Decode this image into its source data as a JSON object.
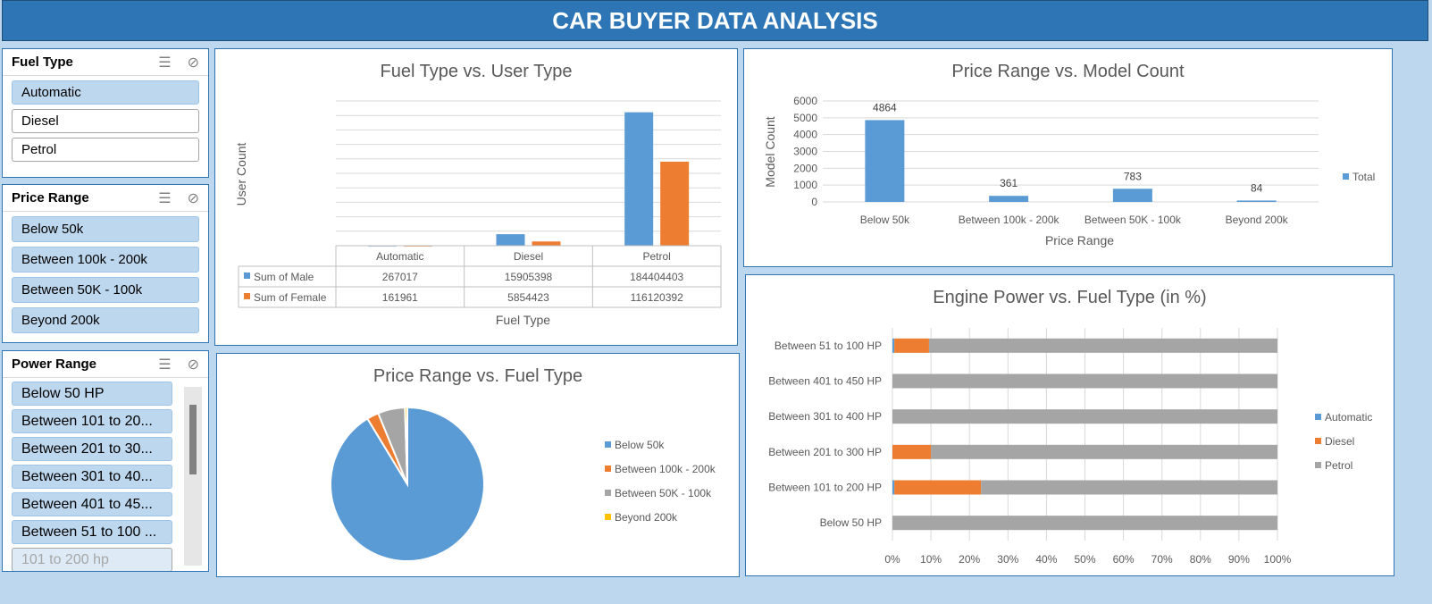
{
  "title": "CAR BUYER DATA ANALYSIS",
  "slicers": [
    {
      "title": "Fuel Type",
      "items": [
        {
          "label": "Automatic",
          "selected": true
        },
        {
          "label": "Diesel",
          "selected": false
        },
        {
          "label": "Petrol",
          "selected": false
        }
      ]
    },
    {
      "title": "Price Range",
      "items": [
        {
          "label": "Below 50k",
          "selected": true
        },
        {
          "label": "Between 100k - 200k",
          "selected": true
        },
        {
          "label": "Between 50K - 100k",
          "selected": true
        },
        {
          "label": "Beyond 200k",
          "selected": true
        }
      ]
    },
    {
      "title": "Power Range",
      "items": [
        {
          "label": "Below 50 HP",
          "selected": true
        },
        {
          "label": "Between 101 to 20...",
          "selected": true
        },
        {
          "label": "Between 201 to 30...",
          "selected": true
        },
        {
          "label": "Between 301 to 40...",
          "selected": true
        },
        {
          "label": "Between 401 to 45...",
          "selected": true
        },
        {
          "label": "Between 51 to 100 ...",
          "selected": true
        },
        {
          "label": "101 to 200 hp",
          "selected": false,
          "dim": true
        }
      ]
    }
  ],
  "colors": {
    "blue": "#5b9bd5",
    "orange": "#ed7d31",
    "gray": "#a5a5a5",
    "yellow": "#ffc000"
  },
  "chart_data": [
    {
      "type": "bar",
      "title": "Fuel Type vs. User Type",
      "xlabel": "Fuel Type",
      "ylabel": "User Count",
      "categories": [
        "Automatic",
        "Diesel",
        "Petrol"
      ],
      "series": [
        {
          "name": "Sum of Male",
          "values": [
            267017,
            15905398,
            184404403
          ]
        },
        {
          "name": "Sum of Female",
          "values": [
            161961,
            5854423,
            116120392
          ]
        }
      ],
      "ylim": [
        0,
        200000000
      ]
    },
    {
      "type": "bar",
      "title": "Price Range vs. Model Count",
      "xlabel": "Price Range",
      "ylabel": "Model Count",
      "categories": [
        "Below 50k",
        "Between 100k - 200k",
        "Between 50K - 100k",
        "Beyond 200k"
      ],
      "series": [
        {
          "name": "Total",
          "values": [
            4864,
            361,
            783,
            84
          ]
        }
      ],
      "ylim": [
        0,
        6000
      ],
      "yticks": [
        0,
        1000,
        2000,
        3000,
        4000,
        5000,
        6000
      ],
      "legend": "right"
    },
    {
      "type": "pie",
      "title": "Price Range vs. Fuel Type",
      "labels": [
        "Below 50k",
        "Between 100k - 200k",
        "Between 50K - 100k",
        "Beyond 200k"
      ],
      "values": [
        91.3,
        2.5,
        5.7,
        0.5
      ],
      "legend": "right"
    },
    {
      "type": "bar",
      "orientation": "horizontal",
      "stacked": true,
      "title": "Engine Power vs. Fuel Type (in %)",
      "categories": [
        "Between 51 to 100 HP",
        "Between 401 to 450 HP",
        "Between 301 to 400 HP",
        "Between 201 to 300 HP",
        "Between 101 to 200 HP",
        "Below 50 HP"
      ],
      "series": [
        {
          "name": "Automatic",
          "values": [
            0.5,
            0,
            0,
            0,
            0.5,
            0
          ]
        },
        {
          "name": "Diesel",
          "values": [
            9,
            0,
            0,
            10,
            22.5,
            0
          ]
        },
        {
          "name": "Petrol",
          "values": [
            90.5,
            100,
            100,
            90,
            77,
            100
          ]
        }
      ],
      "xticks": [
        "0%",
        "10%",
        "20%",
        "30%",
        "40%",
        "50%",
        "60%",
        "70%",
        "80%",
        "90%",
        "100%"
      ],
      "xlim": [
        0,
        100
      ],
      "legend": "right"
    }
  ]
}
